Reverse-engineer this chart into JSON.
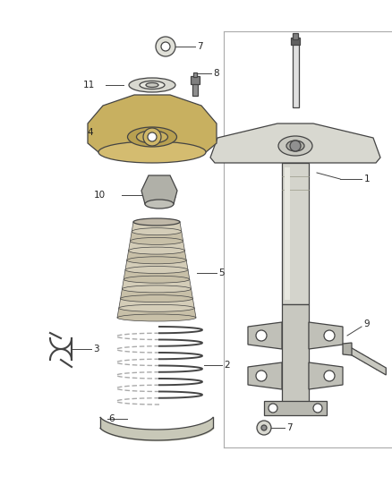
{
  "bg_color": "#ffffff",
  "line_color": "#444444",
  "fig_width": 4.38,
  "fig_height": 5.33,
  "dpi": 100,
  "label_fs": 7.5,
  "lw": 0.9
}
